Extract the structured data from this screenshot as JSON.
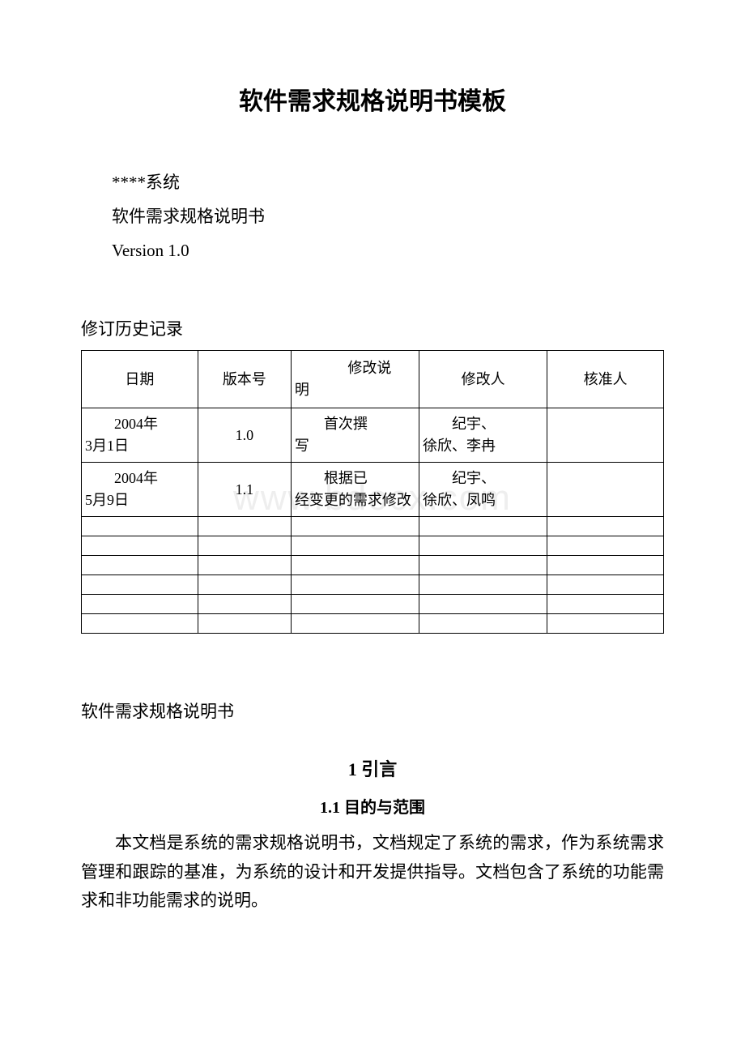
{
  "colors": {
    "background": "#ffffff",
    "text": "#000000",
    "border": "#000000",
    "watermark": "#eeeeee"
  },
  "typography": {
    "title_fontsize": 30,
    "body_fontsize": 21,
    "table_fontsize": 18,
    "h1_fontsize": 22,
    "h2_fontsize": 20,
    "watermark_fontsize": 44,
    "title_font": "SimHei",
    "body_font": "SimSun",
    "latin_font": "Times New Roman"
  },
  "title": "软件需求规格说明书模板",
  "meta": {
    "system": "****系统",
    "doc_type": "软件需求规格说明书",
    "version": "Version 1.0"
  },
  "watermark": "www.bdocx.com",
  "history_label": "修订历史记录",
  "history_table": {
    "columns": [
      "日期",
      "版本号",
      "修改说明",
      "修改人",
      "核准人"
    ],
    "column_widths_pct": [
      20,
      16,
      22,
      22,
      20
    ],
    "header_col3_line1": "修改说",
    "header_col3_line2": "明",
    "rows": [
      {
        "date_l1": "2004年",
        "date_l2": "3月1日",
        "version": "1.0",
        "desc_l1": "首次撰",
        "desc_l2": "写",
        "person_l1": "纪宇、",
        "person_l2": "徐欣、李冉",
        "approver": ""
      },
      {
        "date_l1": "2004年",
        "date_l2": "5月9日",
        "version": "1.1",
        "desc_l1": "根据已",
        "desc_l2": "经变更的需求修改",
        "person_l1": "纪宇、",
        "person_l2": "徐欣、凤鸣",
        "approver": ""
      }
    ],
    "empty_row_count": 6
  },
  "doc_name_line": "软件需求规格说明书",
  "section1": {
    "num": "1",
    "title": "引言"
  },
  "section1_1": {
    "num": "1.1",
    "title": "目的与范围"
  },
  "paragraph1": "本文档是系统的需求规格说明书，文档规定了系统的需求，作为系统需求管理和跟踪的基准，为系统的设计和开发提供指导。文档包含了系统的功能需求和非功能需求的说明。"
}
